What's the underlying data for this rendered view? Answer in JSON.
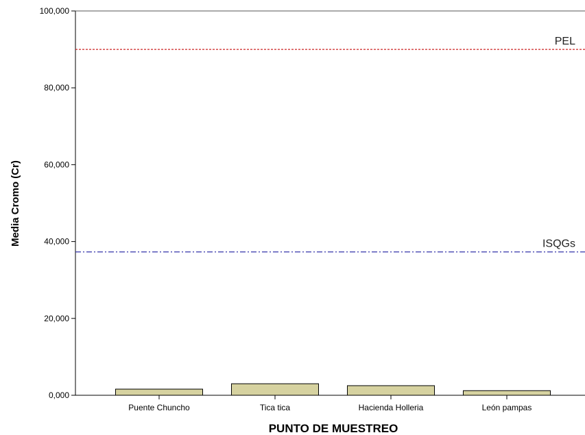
{
  "chart_data": {
    "type": "bar",
    "xlabel": "PUNTO DE MUESTREO",
    "ylabel": "Media Cromo (Cr)",
    "ylim": [
      0,
      100000
    ],
    "yticks": [
      {
        "value": 0,
        "label": "0,000"
      },
      {
        "value": 20000,
        "label": "20,000"
      },
      {
        "value": 40000,
        "label": "40,000"
      },
      {
        "value": 60000,
        "label": "60,000"
      },
      {
        "value": 80000,
        "label": "80,000"
      },
      {
        "value": 100000,
        "label": "100,000"
      }
    ],
    "categories": [
      "Puente Chuncho",
      "Tica tica",
      "Hacienda Holleria",
      "León pampas"
    ],
    "values": [
      1600,
      3000,
      2500,
      1200
    ],
    "bar_color": "#d6d2a0",
    "reference_lines": [
      {
        "name": "PEL",
        "value": 90000,
        "color": "#cc2222",
        "style": "dotted"
      },
      {
        "name": "ISQGs",
        "value": 37300,
        "color": "#3333aa",
        "style": "dashdot"
      }
    ],
    "grid": false
  }
}
